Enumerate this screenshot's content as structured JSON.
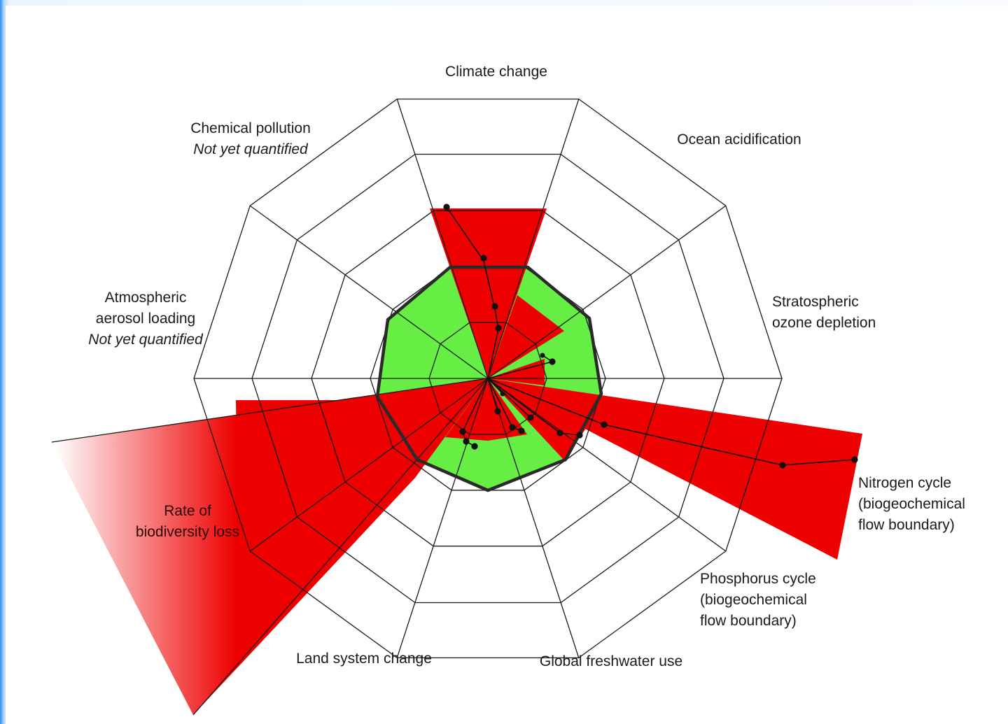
{
  "boundaries": [
    {
      "id": "climate",
      "lines": [
        "Climate change"
      ],
      "italic_line": ""
    },
    {
      "id": "ocean",
      "lines": [
        "Ocean acidification"
      ],
      "italic_line": ""
    },
    {
      "id": "ozone",
      "lines": [
        "Stratospheric",
        "ozone depletion"
      ],
      "italic_line": ""
    },
    {
      "id": "nitrogen",
      "lines": [
        "Nitrogen cycle",
        "(biogeochemical",
        "flow boundary)"
      ],
      "italic_line": ""
    },
    {
      "id": "phosphorus",
      "lines": [
        "Phosphorus cycle",
        "(biogeochemical",
        "flow boundary)"
      ],
      "italic_line": ""
    },
    {
      "id": "freshwater",
      "lines": [
        "Global freshwater use"
      ],
      "italic_line": ""
    },
    {
      "id": "land",
      "lines": [
        "Land system change"
      ],
      "italic_line": ""
    },
    {
      "id": "biodiversity",
      "lines": [
        "Rate of",
        "biodiversity loss"
      ],
      "italic_line": ""
    },
    {
      "id": "aerosol",
      "lines": [
        "Atmospheric",
        "aerosol loading"
      ],
      "italic_line": "Not yet quantified"
    },
    {
      "id": "chemical",
      "lines": [
        "Chemical pollution"
      ],
      "italic_line": "Not yet quantified"
    }
  ],
  "colors": {
    "safe_zone": "#66ee44",
    "exceeded": "#ee0000",
    "web": "#1a1a1a",
    "boundary_ring": "#2a2a2a"
  }
}
